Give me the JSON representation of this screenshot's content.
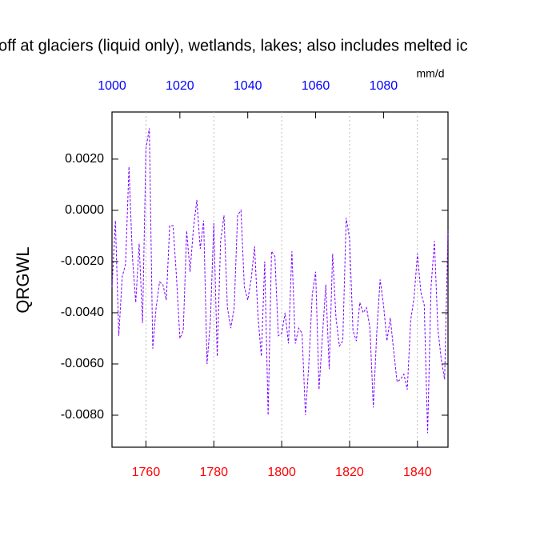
{
  "chart_data": {
    "type": "line",
    "title": "off at glaciers (liquid only), wetlands, lakes; also includes melted ic",
    "units": "mm/d",
    "y_label": "QRGWL",
    "x": [
      1750,
      1751,
      1752,
      1753,
      1754,
      1755,
      1756,
      1757,
      1758,
      1759,
      1760,
      1761,
      1762,
      1763,
      1764,
      1765,
      1766,
      1767,
      1768,
      1769,
      1770,
      1771,
      1772,
      1773,
      1774,
      1775,
      1776,
      1777,
      1778,
      1779,
      1780,
      1781,
      1782,
      1783,
      1784,
      1785,
      1786,
      1787,
      1788,
      1789,
      1790,
      1791,
      1792,
      1793,
      1794,
      1795,
      1796,
      1797,
      1798,
      1799,
      1800,
      1801,
      1802,
      1803,
      1804,
      1805,
      1806,
      1807,
      1808,
      1809,
      1810,
      1811,
      1812,
      1813,
      1814,
      1815,
      1816,
      1817,
      1818,
      1819,
      1820,
      1821,
      1822,
      1823,
      1824,
      1825,
      1826,
      1827,
      1828,
      1829,
      1830,
      1831,
      1832,
      1833,
      1834,
      1835,
      1836,
      1837,
      1838,
      1839,
      1840,
      1841,
      1842,
      1843,
      1844,
      1845,
      1846,
      1847,
      1848,
      1849
    ],
    "series": [
      {
        "color": "#7a00ff",
        "values": [
          -0.003,
          -0.0004,
          -0.0049,
          -0.0026,
          -0.0021,
          0.0017,
          -0.0018,
          -0.0036,
          -0.0013,
          -0.0044,
          0.0024,
          0.0032,
          -0.0054,
          -0.0038,
          -0.0028,
          -0.0029,
          -0.0035,
          -0.0006,
          -0.0006,
          -0.0026,
          -0.005,
          -0.0047,
          -0.0008,
          -0.0024,
          -0.0007,
          0.0004,
          -0.0015,
          -0.0004,
          -0.006,
          -0.0043,
          -0.0005,
          -0.0057,
          -0.0012,
          -0.0002,
          -0.0038,
          -0.0046,
          -0.0038,
          -0.0002,
          0.0,
          -0.003,
          -0.0035,
          -0.0027,
          -0.0014,
          -0.0041,
          -0.0057,
          -0.002,
          -0.008,
          -0.0016,
          -0.0018,
          -0.0049,
          -0.0048,
          -0.004,
          -0.0052,
          -0.0016,
          -0.0052,
          -0.0046,
          -0.0048,
          -0.008,
          -0.006,
          -0.0033,
          -0.0024,
          -0.007,
          -0.0049,
          -0.0029,
          -0.0062,
          -0.0017,
          -0.0042,
          -0.0053,
          -0.0051,
          -0.0003,
          -0.0011,
          -0.0047,
          -0.0051,
          -0.0036,
          -0.004,
          -0.0038,
          -0.0046,
          -0.0077,
          -0.0048,
          -0.0027,
          -0.0037,
          -0.0051,
          -0.0042,
          -0.0055,
          -0.0067,
          -0.0066,
          -0.0064,
          -0.007,
          -0.0043,
          -0.0034,
          -0.0017,
          -0.0032,
          -0.0037,
          -0.0087,
          -0.003,
          -0.0012,
          -0.0046,
          -0.0058,
          -0.0066,
          -0.0008
        ]
      }
    ],
    "xlim": [
      1750,
      1849
    ],
    "xticks": [
      1760,
      1780,
      1800,
      1820,
      1840
    ],
    "xtick_color": "red",
    "x2lim": [
      1000,
      1099
    ],
    "x2ticks": [
      1000,
      1020,
      1040,
      1060,
      1080
    ],
    "x2tick_color": "blue",
    "ylim": [
      -0.00925,
      0.00384
    ],
    "yticks": [
      {
        "value": 0.002,
        "label": "0.0020"
      },
      {
        "value": 0,
        "label": "0.0000"
      },
      {
        "value": -0.002,
        "label": "-0.0020"
      },
      {
        "value": -0.004,
        "label": "-0.0040"
      },
      {
        "value": -0.006,
        "label": "-0.0060"
      },
      {
        "value": -0.008,
        "label": "-0.0080"
      }
    ],
    "grid": true,
    "dashed": true
  }
}
